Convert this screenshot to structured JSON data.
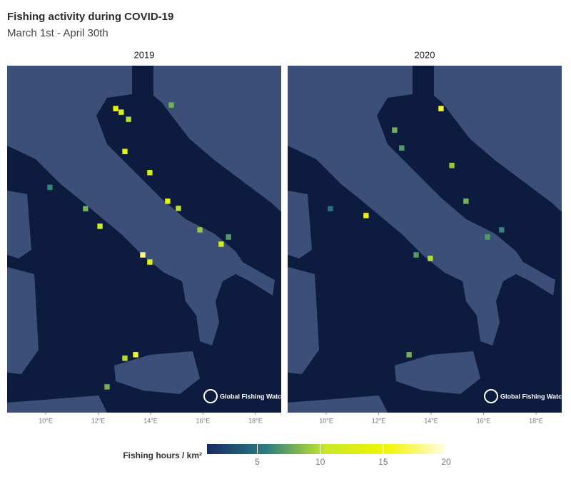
{
  "chart_data": {
    "type": "heatmap-map",
    "title": "Fishing activity during COVID-19",
    "subtitle": "March 1st - April 30th",
    "xlim": [
      8.53,
      18.98
    ],
    "ylim": [
      36.3,
      46.0
    ],
    "xticks": [
      {
        "value": 10,
        "label": "10°E"
      },
      {
        "value": 12,
        "label": "12°E"
      },
      {
        "value": 14,
        "label": "14°E"
      },
      {
        "value": 16,
        "label": "16°E"
      },
      {
        "value": 18,
        "label": "18°E"
      }
    ],
    "watermark": "Global Fishing Watch",
    "panels": [
      {
        "title": "2019",
        "lon": [
          12.67,
          12.88,
          13.16,
          13.02,
          13.97,
          14.65,
          15.06,
          16.69,
          13.7,
          13.97,
          12.07,
          11.52,
          13.43,
          13.02,
          12.34,
          10.16,
          14.79,
          15.88,
          16.97
        ],
        "lat": [
          44.8,
          44.7,
          44.5,
          43.6,
          43.01,
          42.21,
          42.01,
          41.01,
          40.71,
          40.51,
          41.51,
          42.0,
          37.92,
          37.82,
          37.02,
          42.6,
          44.9,
          41.41,
          41.21
        ],
        "values": [
          15,
          12,
          10,
          14,
          12,
          14,
          10,
          12,
          18,
          13,
          12,
          8,
          16,
          10,
          8,
          6,
          8,
          9,
          7
        ]
      },
      {
        "title": "2020",
        "lon": [
          11.52,
          14.38,
          12.61,
          12.88,
          14.79,
          15.33,
          16.15,
          13.97,
          13.43,
          13.16,
          10.16,
          16.69
        ],
        "lat": [
          41.81,
          44.8,
          44.2,
          43.7,
          43.21,
          42.21,
          41.21,
          40.61,
          40.71,
          37.92,
          42.0,
          41.41
        ],
        "values": [
          15,
          16,
          8,
          7,
          9,
          8,
          7,
          10,
          7,
          8,
          5,
          6
        ]
      }
    ],
    "colorbar": {
      "label": "Fishing hours /  km²",
      "clim": [
        1,
        20
      ],
      "ticks": [
        5,
        10,
        15,
        20
      ],
      "colors": [
        "#172a66",
        "#2b7e80",
        "#c8e82a",
        "#f2f500",
        "#fffbe8"
      ]
    }
  }
}
